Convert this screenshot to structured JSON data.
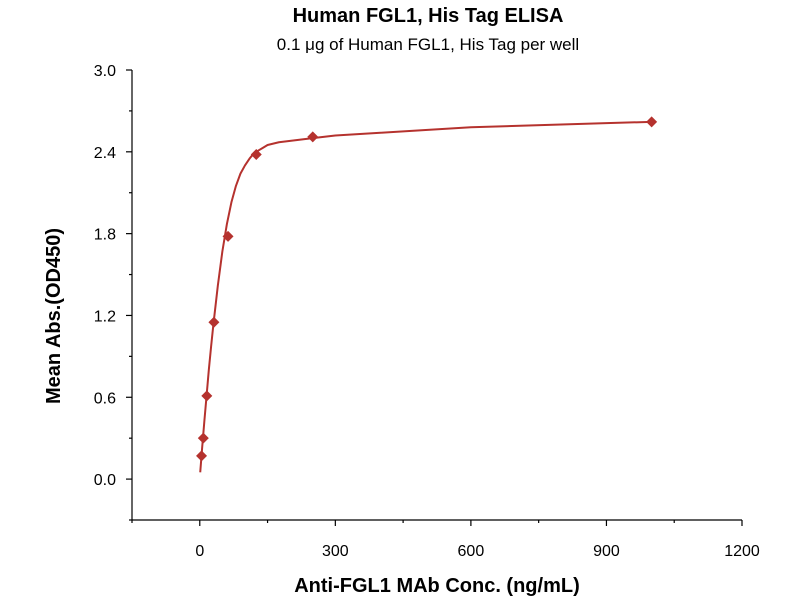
{
  "chart_data": {
    "type": "scatter",
    "title": "Human FGL1, His Tag ELISA",
    "subtitle": "0.1 μg of Human FGL1, His Tag per well",
    "xlabel": "Anti-FGL1 MAb Conc. (ng/mL)",
    "ylabel": "Mean Abs.(OD450)",
    "xlim": [
      -150,
      1200
    ],
    "ylim": [
      -0.3,
      3.0
    ],
    "x_ticks": [
      0,
      300,
      600,
      900,
      1200
    ],
    "y_ticks": [
      0.0,
      0.6,
      1.2,
      1.8,
      2.4,
      3.0
    ],
    "x_tick_labels": [
      "0",
      "300",
      "600",
      "900",
      "1200"
    ],
    "y_tick_labels": [
      "0.0",
      "0.6",
      "1.2",
      "1.8",
      "2.4",
      "3.0"
    ],
    "grid": false,
    "series": [
      {
        "marker": "diamond",
        "color": "#b5322e",
        "x": [
          3.9,
          7.8,
          15.6,
          31.3,
          62.5,
          125,
          250,
          1000
        ],
        "y": [
          0.17,
          0.3,
          0.61,
          1.15,
          1.78,
          2.38,
          2.51,
          2.62
        ]
      }
    ],
    "fit_curve": {
      "color": "#b5322e",
      "model": "four-parameter logistic",
      "x": [
        1,
        5,
        10,
        15,
        20,
        25,
        30,
        40,
        50,
        60,
        70,
        80,
        90,
        100,
        110,
        120,
        130,
        140,
        150,
        175,
        200,
        250,
        300,
        400,
        500,
        600,
        700,
        800,
        900,
        1000
      ],
      "y": [
        0.05,
        0.22,
        0.42,
        0.61,
        0.8,
        0.97,
        1.13,
        1.42,
        1.67,
        1.87,
        2.03,
        2.15,
        2.24,
        2.3,
        2.35,
        2.39,
        2.41,
        2.43,
        2.45,
        2.47,
        2.48,
        2.5,
        2.52,
        2.54,
        2.56,
        2.58,
        2.59,
        2.6,
        2.61,
        2.62
      ]
    }
  }
}
